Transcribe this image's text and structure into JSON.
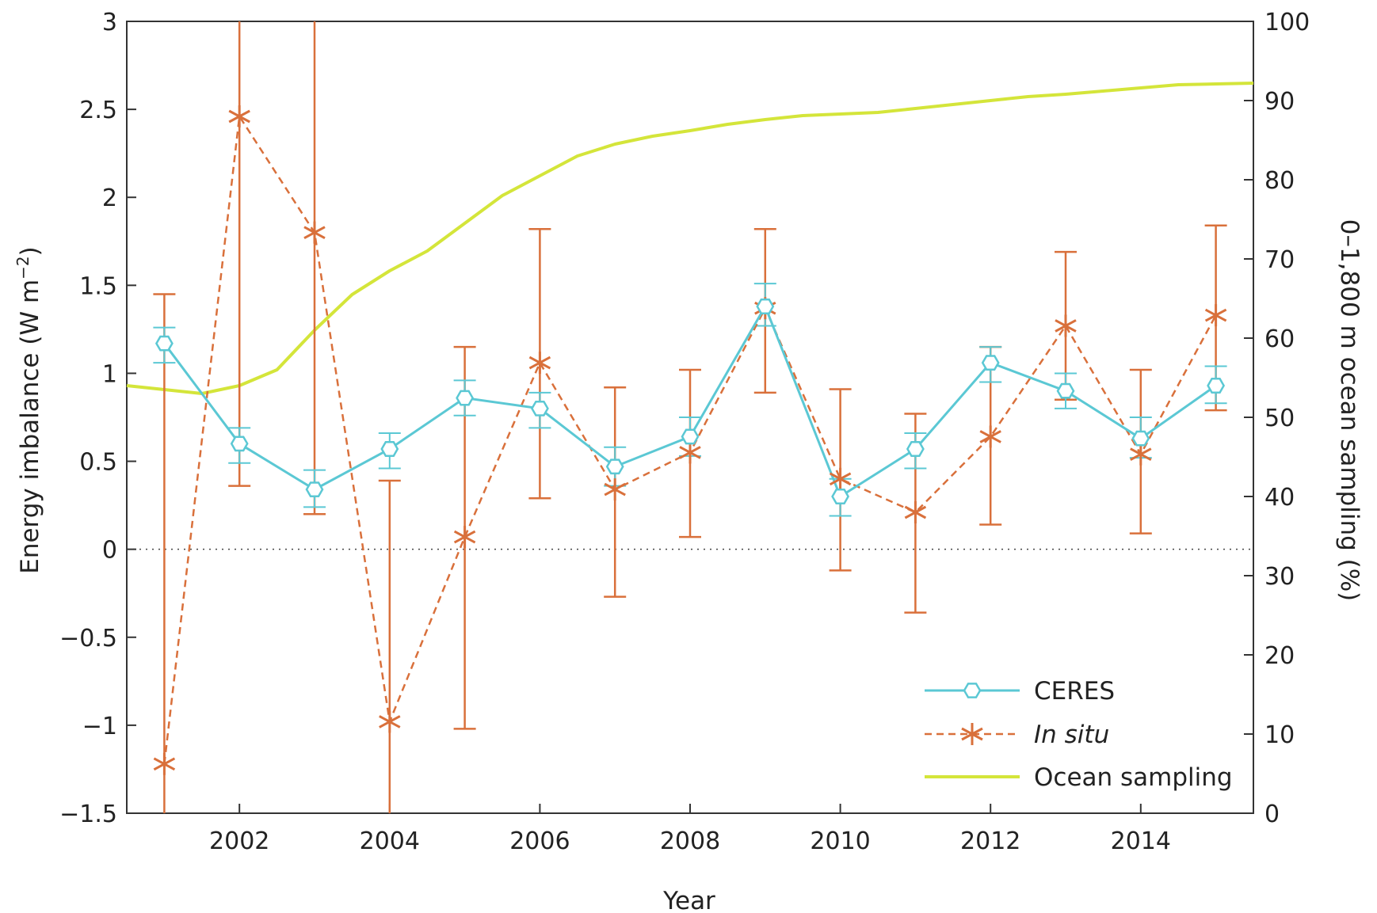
{
  "chart_data": {
    "type": "line",
    "title": "",
    "xlabel": "Year",
    "ylabel": {
      "main": "Energy imbalance (W m",
      "sup": "−2",
      "end": ")"
    },
    "y2label": "0–1,800 m ocean sampling (%)",
    "xlim": [
      2000.5,
      2015.5
    ],
    "ylim": [
      -1.5,
      3
    ],
    "y2lim": [
      0,
      100
    ],
    "x_ticks": [
      2002,
      2004,
      2006,
      2008,
      2010,
      2012,
      2014
    ],
    "x_tick_labels": [
      "2002",
      "2004",
      "2006",
      "2008",
      "2010",
      "2012",
      "2014"
    ],
    "y_ticks": [
      -1.5,
      -1,
      -0.5,
      0,
      0.5,
      1,
      1.5,
      2,
      2.5,
      3
    ],
    "y_tick_labels": [
      "−1.5",
      "−1",
      "−0.5",
      "0",
      "0.5",
      "1",
      "1.5",
      "2",
      "2.5",
      "3"
    ],
    "y2_ticks": [
      0,
      10,
      20,
      30,
      40,
      50,
      60,
      70,
      80,
      90,
      100
    ],
    "y2_tick_labels": [
      "0",
      "10",
      "20",
      "30",
      "40",
      "50",
      "60",
      "70",
      "80",
      "90",
      "100"
    ],
    "zero_line": true,
    "grid": false,
    "legend_position": "bottom-right",
    "series": [
      {
        "name": "CERES",
        "axis": "left",
        "style": "solid",
        "marker": "hexagon",
        "color": "#5bc8d4",
        "x": [
          2001,
          2002,
          2003,
          2004,
          2005,
          2006,
          2007,
          2008,
          2009,
          2010,
          2011,
          2012,
          2013,
          2014,
          2015
        ],
        "y": [
          1.17,
          0.6,
          0.34,
          0.57,
          0.86,
          0.8,
          0.47,
          0.64,
          1.38,
          0.3,
          0.57,
          1.06,
          0.9,
          0.63,
          0.93
        ],
        "err_low": [
          1.06,
          0.49,
          0.24,
          0.46,
          0.76,
          0.69,
          0.36,
          0.53,
          1.27,
          0.19,
          0.46,
          0.95,
          0.8,
          0.52,
          0.83
        ],
        "err_high": [
          1.26,
          0.69,
          0.45,
          0.66,
          0.96,
          0.89,
          0.58,
          0.75,
          1.51,
          0.4,
          0.66,
          1.15,
          1.0,
          0.75,
          1.04
        ]
      },
      {
        "name": "In situ",
        "axis": "left",
        "style": "dashed",
        "marker": "asterisk",
        "color": "#d9703b",
        "x": [
          2001,
          2002,
          2003,
          2004,
          2005,
          2006,
          2007,
          2008,
          2009,
          2010,
          2011,
          2012,
          2013,
          2014,
          2015
        ],
        "y": [
          -1.22,
          2.46,
          1.8,
          -0.98,
          0.07,
          1.06,
          0.34,
          0.55,
          1.37,
          0.4,
          0.21,
          0.64,
          1.27,
          0.54,
          1.33
        ],
        "err_low": [
          -1.5,
          0.36,
          0.2,
          -1.5,
          -1.02,
          0.29,
          -0.27,
          0.07,
          0.89,
          -0.12,
          -0.36,
          0.14,
          0.85,
          0.09,
          0.79
        ],
        "err_high": [
          1.45,
          3,
          3,
          0.39,
          1.15,
          1.82,
          0.92,
          1.02,
          1.82,
          0.91,
          0.77,
          1.15,
          1.69,
          1.02,
          1.84
        ]
      },
      {
        "name": "Ocean sampling",
        "axis": "right",
        "style": "solid",
        "marker": "none",
        "color": "#d4e53a",
        "x": [
          2000.5,
          2001,
          2001.5,
          2002,
          2002.5,
          2003,
          2003.5,
          2004,
          2004.5,
          2005,
          2005.5,
          2006,
          2006.5,
          2007,
          2007.5,
          2008,
          2008.5,
          2009,
          2009.5,
          2010,
          2010.5,
          2011,
          2011.5,
          2012,
          2012.5,
          2013,
          2013.5,
          2014,
          2014.5,
          2015,
          2015.5
        ],
        "y": [
          54,
          53.5,
          53,
          54,
          56,
          61,
          65.5,
          68.5,
          71,
          74.5,
          78,
          80.5,
          83,
          84.5,
          85.5,
          86.2,
          87,
          87.6,
          88.1,
          88.3,
          88.5,
          89,
          89.5,
          90,
          90.5,
          90.8,
          91.2,
          91.6,
          92,
          92.1,
          92.2
        ]
      }
    ]
  }
}
